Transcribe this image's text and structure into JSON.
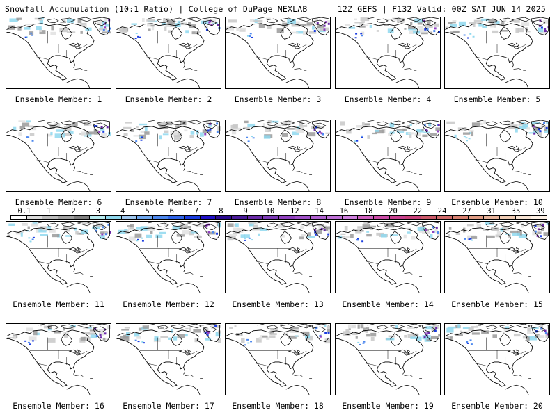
{
  "header": {
    "left": "Snowfall Accumulation (10:1 Ratio) | College of DuPage NEXLAB",
    "right": "12Z GEFS | F132 Valid: 00Z SAT JUN 14 2025"
  },
  "members": [
    "Ensemble Member: 1",
    "Ensemble Member: 2",
    "Ensemble Member: 3",
    "Ensemble Member: 4",
    "Ensemble Member: 5",
    "Ensemble Member: 6",
    "Ensemble Member: 7",
    "Ensemble Member: 8",
    "Ensemble Member: 9",
    "Ensemble Member: 10",
    "Ensemble Member: 11",
    "Ensemble Member: 12",
    "Ensemble Member: 13",
    "Ensemble Member: 14",
    "Ensemble Member: 15",
    "Ensemble Member: 16",
    "Ensemble Member: 17",
    "Ensemble Member: 18",
    "Ensemble Member: 19",
    "Ensemble Member: 20"
  ],
  "legend": {
    "ticks": [
      "0.1",
      "1",
      "2",
      "3",
      "4",
      "5",
      "6",
      "7",
      "8",
      "9",
      "10",
      "12",
      "14",
      "16",
      "18",
      "20",
      "22",
      "24",
      "27",
      "31",
      "35",
      "39"
    ],
    "colors": [
      "#ffffff",
      "#dcdcdc",
      "#bdbdbd",
      "#a0a0a0",
      "#808080",
      "#b8ecf0",
      "#8fd8ee",
      "#9fc8f0",
      "#6fa8f0",
      "#4d88ee",
      "#2f64e8",
      "#1a3ce0",
      "#1f10c8",
      "#2a0a90",
      "#4a1a9a",
      "#6a2aa8",
      "#7e3cb8",
      "#9040c0",
      "#a050c8",
      "#b060d0",
      "#c070d8",
      "#d080e0",
      "#d060c0",
      "#cc4ca8",
      "#c84090",
      "#c8407a",
      "#cc5a6a",
      "#d06a6a",
      "#d88070",
      "#e09c84",
      "#e8b49c",
      "#f0ccb4",
      "#f8e4d4",
      "#fff2e6"
    ]
  }
}
